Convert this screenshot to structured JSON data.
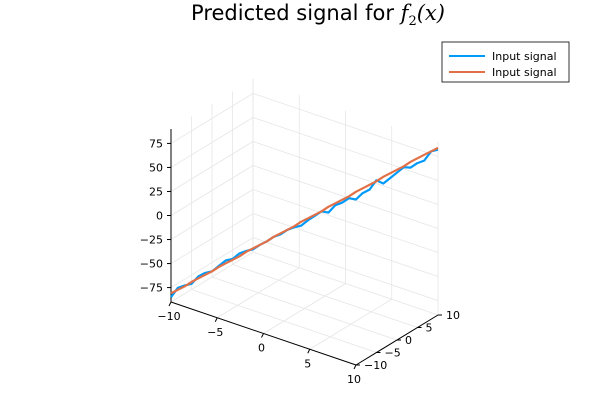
{
  "chart_data": {
    "type": "line",
    "projection": "3d",
    "title": {
      "prefix": "Predicted signal for ",
      "math_main": "f",
      "math_sub": "2",
      "math_args": "(x)"
    },
    "xlim": [
      -10,
      10
    ],
    "ylim": [
      -10,
      10
    ],
    "zlim": [
      -90,
      90
    ],
    "x_ticks": [
      -10,
      -5,
      0,
      5,
      10
    ],
    "y_ticks": [
      -10,
      -5,
      0,
      5,
      10
    ],
    "z_ticks": [
      -75,
      -50,
      -25,
      0,
      25,
      50,
      75
    ],
    "x_tick_labels": [
      "−10",
      "−5",
      "0",
      "5",
      "10"
    ],
    "y_tick_labels": [
      "−10",
      "−5",
      "0",
      "5",
      "10"
    ],
    "z_tick_labels": [
      "−75",
      "−50",
      "−25",
      "0",
      "25",
      "50",
      "75"
    ],
    "grid": true,
    "legend_position": "top-right",
    "series": [
      {
        "name": "Input signal",
        "color": "#009af9",
        "x": [
          -10,
          -9.49,
          -8.97,
          -8.46,
          -7.95,
          -7.44,
          -6.92,
          -6.41,
          -5.9,
          -5.38,
          -4.87,
          -4.36,
          -3.85,
          -3.33,
          -2.82,
          -2.31,
          -1.79,
          -1.28,
          -0.77,
          -0.26,
          0.26,
          0.77,
          1.28,
          1.79,
          2.31,
          2.82,
          3.33,
          3.85,
          4.36,
          4.87,
          5.38,
          5.9,
          6.41,
          6.92,
          7.44,
          7.95,
          8.46,
          8.97,
          9.49,
          10
        ],
        "y": [
          -10,
          -9.49,
          -8.97,
          -8.46,
          -7.95,
          -7.44,
          -6.92,
          -6.41,
          -5.9,
          -5.38,
          -4.87,
          -4.36,
          -3.85,
          -3.33,
          -2.82,
          -2.31,
          -1.79,
          -1.28,
          -0.77,
          -0.26,
          0.26,
          0.77,
          1.28,
          1.79,
          2.31,
          2.82,
          3.33,
          3.85,
          4.36,
          4.87,
          5.38,
          5.9,
          6.41,
          6.92,
          7.44,
          7.95,
          8.46,
          8.97,
          9.49,
          10
        ],
        "z": [
          -85,
          -75,
          -72,
          -70,
          -62,
          -58,
          -56,
          -50,
          -44,
          -42,
          -36,
          -33,
          -31,
          -26,
          -22,
          -17,
          -14,
          -9,
          -6,
          -4,
          2,
          7,
          12,
          11,
          19,
          22,
          27,
          26,
          33,
          37,
          47,
          44,
          50,
          56,
          62,
          62,
          67,
          70,
          80,
          82
        ]
      },
      {
        "name": "Input signal",
        "color": "#e26f46",
        "x": [
          -10,
          -9.49,
          -8.97,
          -8.46,
          -7.95,
          -7.44,
          -6.92,
          -6.41,
          -5.9,
          -5.38,
          -4.87,
          -4.36,
          -3.85,
          -3.33,
          -2.82,
          -2.31,
          -1.79,
          -1.28,
          -0.77,
          -0.26,
          0.26,
          0.77,
          1.28,
          1.79,
          2.31,
          2.82,
          3.33,
          3.85,
          4.36,
          4.87,
          5.38,
          5.9,
          6.41,
          6.92,
          7.44,
          7.95,
          8.46,
          8.97,
          9.49,
          10
        ],
        "y": [
          -10,
          -9.49,
          -8.97,
          -8.46,
          -7.95,
          -7.44,
          -6.92,
          -6.41,
          -5.9,
          -5.38,
          -4.87,
          -4.36,
          -3.85,
          -3.33,
          -2.82,
          -2.31,
          -1.79,
          -1.28,
          -0.77,
          -0.26,
          0.26,
          0.77,
          1.28,
          1.79,
          2.31,
          2.82,
          3.33,
          3.85,
          4.36,
          4.87,
          5.38,
          5.9,
          6.41,
          6.92,
          7.44,
          7.95,
          8.46,
          8.97,
          9.49,
          10
        ],
        "z": [
          -81,
          -77,
          -73,
          -68,
          -64,
          -60,
          -56,
          -51,
          -47,
          -43,
          -39,
          -34,
          -30,
          -26,
          -22,
          -17,
          -13,
          -9,
          -5,
          0,
          4,
          8,
          12,
          17,
          21,
          25,
          29,
          34,
          38,
          42,
          46,
          51,
          55,
          59,
          63,
          68,
          72,
          76,
          80,
          84
        ]
      }
    ]
  }
}
